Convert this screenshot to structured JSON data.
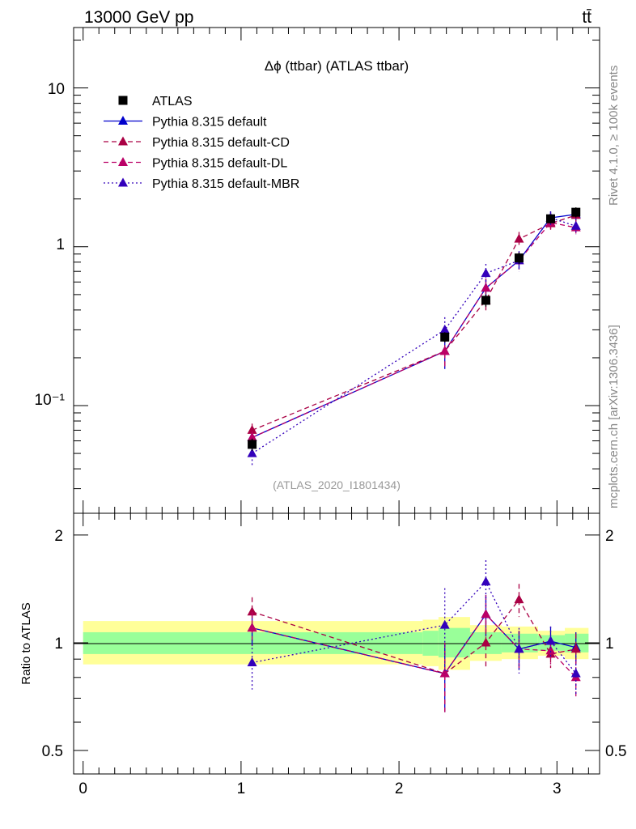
{
  "header": {
    "left": "13000 GeV pp",
    "right": "tt̄"
  },
  "side_labels": {
    "rivet": "Rivet 4.1.0, ≥ 100k events",
    "mcplots": "mcplots.cern.ch [arXiv:1306.3436]"
  },
  "colors": {
    "atlas": "#000000",
    "default": "#0000cc",
    "cd": "#aa0044",
    "dl": "#bb0066",
    "mbr": "#3300bb",
    "band_green": "#99ff99",
    "band_yellow": "#ffff99"
  },
  "chart_data": [
    {
      "type": "line",
      "title": "Δϕ (ttbar) (ATLAS ttbar)",
      "analysis_tag": "(ATLAS_2020_I1801434)",
      "yscale": "log",
      "xlim": [
        -0.06,
        3.27
      ],
      "ylim": [
        0.021,
        24
      ],
      "ytick_labels": {
        "major": [
          "10",
          "1",
          "10⁻¹"
        ]
      },
      "x": [
        1.07,
        2.29,
        2.55,
        2.76,
        2.96,
        3.12
      ],
      "series": [
        {
          "name": "ATLAS",
          "marker": "square",
          "values": [
            0.057,
            0.27,
            0.46,
            0.85,
            1.5,
            1.65
          ],
          "errors": [
            0.005,
            0.02,
            0.04,
            0.07,
            0.1,
            0.12
          ]
        },
        {
          "name": "Pythia 8.315 default",
          "marker": "triangle",
          "line": "solid",
          "values": [
            0.063,
            0.22,
            0.55,
            0.82,
            1.52,
            1.6
          ],
          "errors": [
            0.006,
            0.05,
            0.08,
            0.1,
            0.15,
            0.15
          ]
        },
        {
          "name": "Pythia 8.315 default-CD",
          "marker": "triangle",
          "line": "dashed",
          "values": [
            0.07,
            0.22,
            0.46,
            1.12,
            1.4,
            1.58
          ],
          "errors": [
            0.007,
            0.05,
            0.08,
            0.12,
            0.12,
            0.14
          ]
        },
        {
          "name": "Pythia 8.315 default-DL",
          "marker": "triangle",
          "line": "dashed",
          "values": [
            0.063,
            0.22,
            0.55,
            0.82,
            1.42,
            1.32
          ],
          "errors": [
            0.006,
            0.05,
            0.08,
            0.1,
            0.13,
            0.14
          ]
        },
        {
          "name": "Pythia 8.315 default-MBR",
          "marker": "triangle",
          "line": "dotted",
          "values": [
            0.05,
            0.3,
            0.68,
            0.82,
            1.52,
            1.35
          ],
          "errors": [
            0.008,
            0.06,
            0.1,
            0.12,
            0.15,
            0.16
          ]
        }
      ]
    },
    {
      "type": "line",
      "ylabel": "Ratio to ATLAS",
      "yscale": "log",
      "xlim": [
        -0.06,
        3.27
      ],
      "ylim": [
        0.43,
        2.3
      ],
      "ytick_labels": [
        "2",
        "1",
        "0.5"
      ],
      "xtick_labels": [
        "0",
        "1",
        "2",
        "3"
      ],
      "bands": [
        {
          "x0": 0.0,
          "x1": 2.15,
          "green": [
            0.93,
            1.07
          ],
          "yellow": [
            0.87,
            1.15
          ]
        },
        {
          "x0": 2.15,
          "x1": 2.25,
          "green": [
            0.92,
            1.08
          ],
          "yellow": [
            0.86,
            1.16
          ]
        },
        {
          "x0": 2.25,
          "x1": 2.45,
          "green": [
            0.91,
            1.1
          ],
          "yellow": [
            0.84,
            1.18
          ]
        },
        {
          "x0": 2.45,
          "x1": 2.65,
          "green": [
            0.93,
            1.07
          ],
          "yellow": [
            0.89,
            1.12
          ]
        },
        {
          "x0": 2.65,
          "x1": 2.88,
          "green": [
            0.94,
            1.06
          ],
          "yellow": [
            0.9,
            1.11
          ]
        },
        {
          "x0": 2.88,
          "x1": 3.05,
          "green": [
            0.95,
            1.05
          ],
          "yellow": [
            0.92,
            1.08
          ]
        },
        {
          "x0": 3.05,
          "x1": 3.2,
          "green": [
            0.94,
            1.06
          ],
          "yellow": [
            0.9,
            1.1
          ]
        }
      ],
      "x": [
        1.07,
        2.29,
        2.55,
        2.76,
        2.96,
        3.12
      ],
      "series": [
        {
          "name": "Pythia 8.315 default",
          "values": [
            1.1,
            0.82,
            1.2,
            0.96,
            1.01,
            0.97
          ],
          "errors": [
            0.12,
            0.18,
            0.16,
            0.12,
            0.1,
            0.1
          ]
        },
        {
          "name": "Pythia 8.315 default-CD",
          "values": [
            1.22,
            0.82,
            1.0,
            1.32,
            0.93,
            0.96
          ],
          "errors": [
            0.12,
            0.18,
            0.15,
            0.14,
            0.08,
            0.1
          ]
        },
        {
          "name": "Pythia 8.315 default-DL",
          "values": [
            1.1,
            0.82,
            1.2,
            0.96,
            0.95,
            0.8
          ],
          "errors": [
            0.12,
            0.18,
            0.16,
            0.12,
            0.08,
            0.1
          ]
        },
        {
          "name": "Pythia 8.315 default-MBR",
          "values": [
            0.88,
            1.12,
            1.48,
            0.96,
            1.01,
            0.82
          ],
          "errors": [
            0.14,
            0.3,
            0.22,
            0.14,
            0.1,
            0.1
          ]
        }
      ]
    }
  ]
}
